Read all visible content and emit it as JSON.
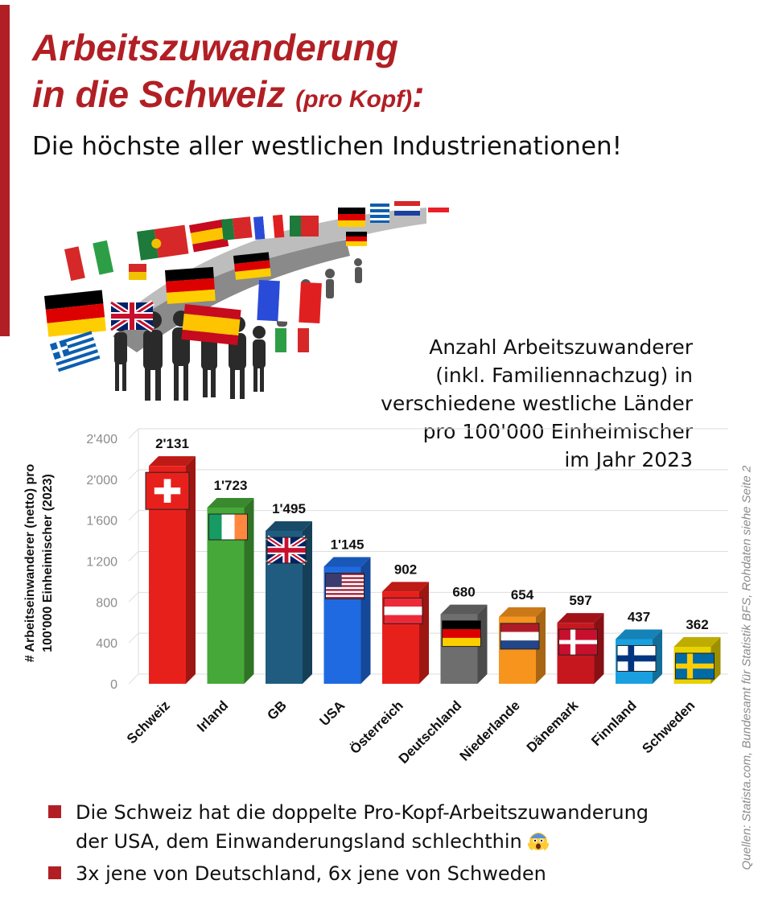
{
  "header": {
    "title_line1": "Arbeitszuwanderung",
    "title_line2": "in die Schweiz",
    "title_small": "(pro Kopf)",
    "title_colon": ":",
    "subtitle": "Die höchste aller westlichen Industrienationen!"
  },
  "caption": {
    "line1": "Anzahl Arbeitszuwanderer",
    "line2": "(inkl. Familiennachzug) in",
    "line3": "verschiedene westliche Länder",
    "line4": "pro 100'000 Einheimischer",
    "line5": "im Jahr 2023"
  },
  "source": "Quellen: Statista.com, Bundesamt für Statistik BFS, Rohdaten siehe Seite 2",
  "chart_data": {
    "type": "bar",
    "title": "Anzahl Arbeitszuwanderer (inkl. Familiennachzug) in verschiedene westliche Länder pro 100'000 Einheimischer im Jahr 2023",
    "ylabel_line1": "# Arbeitseinwanderer (netto) pro",
    "ylabel_line2": "100'000 Einheimischer (2023)",
    "ylim": [
      0,
      2400
    ],
    "yticks": [
      0,
      400,
      800,
      1200,
      1600,
      2000,
      2400
    ],
    "ytick_labels": [
      "0",
      "400",
      "800",
      "1'200",
      "1'600",
      "2'000",
      "2'400"
    ],
    "grid": true,
    "categories": [
      "Schweiz",
      "Irland",
      "GB",
      "USA",
      "Österreich",
      "Deutschland",
      "Niederlande",
      "Dänemark",
      "Finnland",
      "Schweden"
    ],
    "values": [
      2131,
      1723,
      1495,
      1145,
      902,
      680,
      654,
      597,
      437,
      362
    ],
    "value_labels": [
      "2'131",
      "1'723",
      "1'495",
      "1'145",
      "902",
      "680",
      "654",
      "597",
      "437",
      "362"
    ],
    "colors": [
      "#e8201b",
      "#46a838",
      "#1f5c80",
      "#1f6ae0",
      "#e8201b",
      "#6e6e6e",
      "#f7941d",
      "#c6171f",
      "#1aa0e0",
      "#e8d200"
    ],
    "flags": [
      "swiss-flag",
      "irish-flag",
      "uk-flag",
      "us-flag",
      "austrian-flag",
      "german-flag",
      "dutch-flag",
      "danish-flag",
      "finnish-flag",
      "swedish-flag"
    ]
  },
  "bullets": [
    {
      "text_line1": "Die Schweiz hat die doppelte Pro-Kopf-Arbeitszuwanderung",
      "text_line2": "der USA, dem Einwanderungsland schlechthin",
      "emoji": "shocked-face-icon"
    },
    {
      "text_line1": "3x jene von Deutschland, 6x jene von Schweden"
    }
  ],
  "accent_color": "#b11f24"
}
